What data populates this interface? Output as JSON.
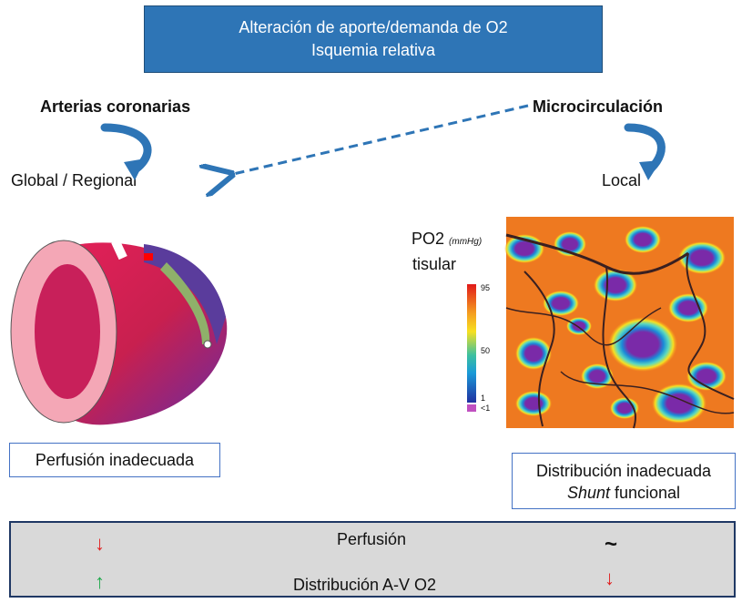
{
  "title": {
    "line1": "Alteración de aporte/demanda de O2",
    "line2": "Isquemia relativa"
  },
  "left": {
    "heading": "Arterias coronarias",
    "scope": "Global / Regional",
    "result": "Perfusión inadecuada"
  },
  "right": {
    "heading": "Microcirculación",
    "scope": "Local",
    "legend_title_main": "PO2",
    "legend_title_unit": "(mmHg)",
    "legend_title_sub": "tisular",
    "legend_ticks": [
      "95",
      "50",
      "1",
      "<1"
    ],
    "result_line1": "Distribución inadecuada",
    "result_line2_italic": "Shunt",
    "result_line2_rest": " funcional"
  },
  "bottom": {
    "row1_label": "Perfusión",
    "row2_label": "Distribución A-V O2",
    "row1_right_symbol": "~"
  },
  "colors": {
    "title_fill": "#2e75b6",
    "panel_fill": "#d9d9d9",
    "arrow_blue": "#2e75b6",
    "up_arrow": "#1ea84a",
    "down_arrow": "#e02020"
  }
}
